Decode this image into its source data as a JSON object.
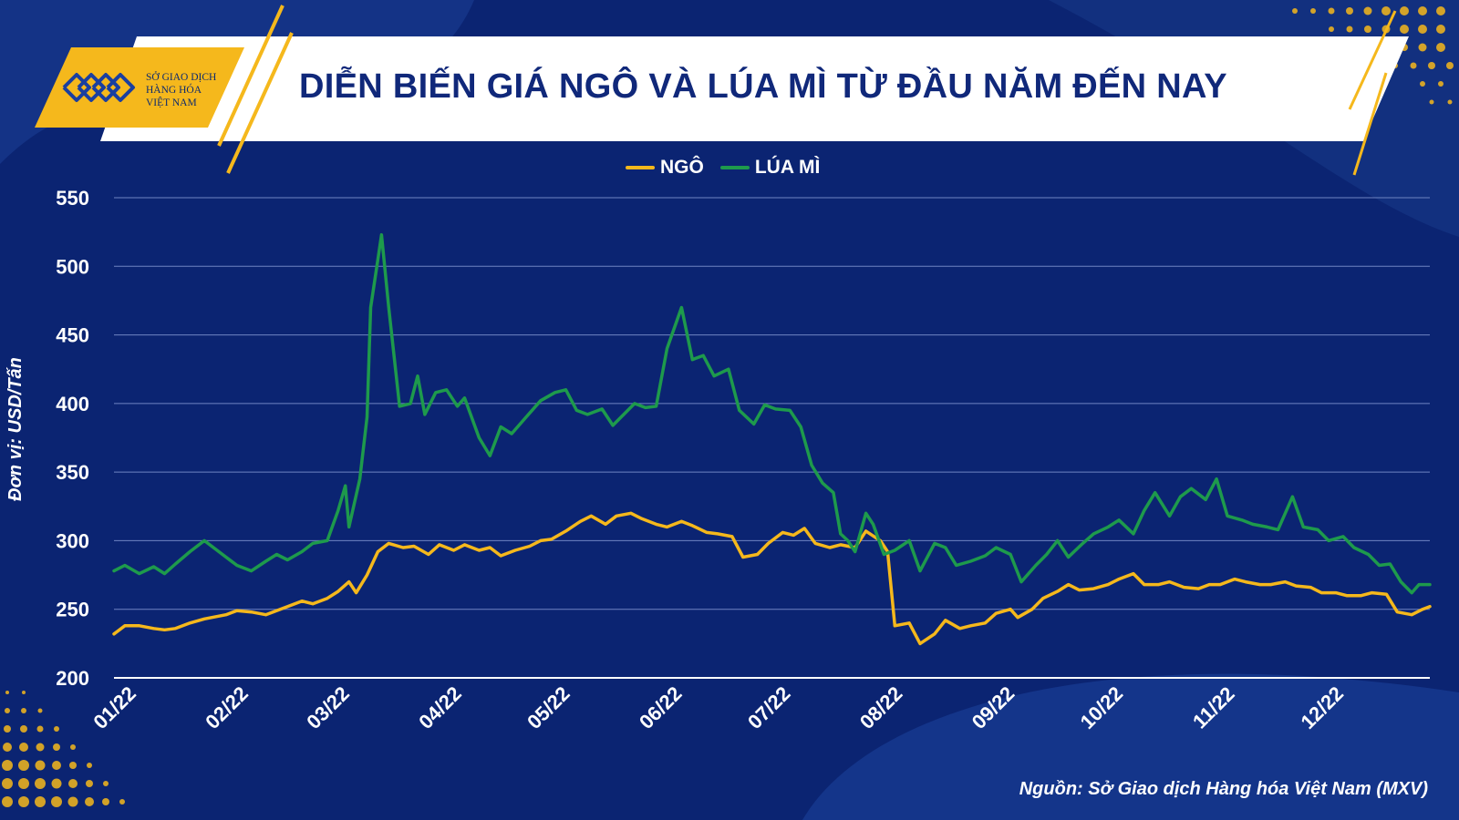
{
  "header": {
    "logo_lines": [
      "SỞ GIAO DỊCH",
      "HÀNG HÓA",
      "VIỆT NAM"
    ],
    "title": "DIỄN BIẾN GIÁ NGÔ VÀ LÚA MÌ TỪ ĐẦU NĂM ĐẾN NAY"
  },
  "footer": {
    "source": "Nguồn: Sở Giao dịch Hàng hóa Việt Nam (MXV)"
  },
  "colors": {
    "background": "#0b2472",
    "corn": "#f5b81c",
    "wheat": "#1e9a4c",
    "accent": "#f5b81c"
  },
  "chart_data": {
    "type": "line",
    "title": "DIỄN BIẾN GIÁ NGÔ VÀ LÚA MÌ TỪ ĐẦU NĂM ĐẾN NAY",
    "ylabel": "Đơn vị: USD/Tấn",
    "xlabel": "",
    "ylim": [
      200,
      550
    ],
    "y_ticks": [
      200,
      250,
      300,
      350,
      400,
      450,
      500,
      550
    ],
    "x_ticks": [
      "01/22",
      "02/22",
      "03/22",
      "04/22",
      "05/22",
      "06/22",
      "07/22",
      "08/22",
      "09/22",
      "10/22",
      "11/22",
      "12/22"
    ],
    "legend_position": "top-center",
    "grid": true,
    "series": [
      {
        "name": "NGÔ",
        "color": "#f5b81c",
        "points": [
          [
            "01/01",
            232
          ],
          [
            "01/04",
            238
          ],
          [
            "01/08",
            238
          ],
          [
            "01/12",
            236
          ],
          [
            "01/15",
            235
          ],
          [
            "01/18",
            236
          ],
          [
            "01/22",
            240
          ],
          [
            "01/26",
            243
          ],
          [
            "02/01",
            246
          ],
          [
            "02/04",
            249
          ],
          [
            "02/08",
            248
          ],
          [
            "02/12",
            246
          ],
          [
            "02/15",
            249
          ],
          [
            "02/18",
            252
          ],
          [
            "02/22",
            256
          ],
          [
            "02/25",
            254
          ],
          [
            "03/01",
            258
          ],
          [
            "03/04",
            263
          ],
          [
            "03/07",
            270
          ],
          [
            "03/09",
            262
          ],
          [
            "03/12",
            275
          ],
          [
            "03/15",
            292
          ],
          [
            "03/18",
            298
          ],
          [
            "03/22",
            295
          ],
          [
            "03/25",
            296
          ],
          [
            "03/29",
            290
          ],
          [
            "04/01",
            297
          ],
          [
            "04/05",
            293
          ],
          [
            "04/08",
            297
          ],
          [
            "04/12",
            293
          ],
          [
            "04/15",
            295
          ],
          [
            "04/18",
            289
          ],
          [
            "04/22",
            293
          ],
          [
            "04/26",
            296
          ],
          [
            "04/29",
            300
          ],
          [
            "05/02",
            301
          ],
          [
            "05/06",
            307
          ],
          [
            "05/10",
            314
          ],
          [
            "05/13",
            318
          ],
          [
            "05/17",
            312
          ],
          [
            "05/20",
            318
          ],
          [
            "05/24",
            320
          ],
          [
            "05/27",
            316
          ],
          [
            "05/31",
            312
          ],
          [
            "06/03",
            310
          ],
          [
            "06/07",
            314
          ],
          [
            "06/10",
            311
          ],
          [
            "06/14",
            306
          ],
          [
            "06/17",
            305
          ],
          [
            "06/21",
            303
          ],
          [
            "06/24",
            288
          ],
          [
            "06/28",
            290
          ],
          [
            "07/01",
            298
          ],
          [
            "07/05",
            306
          ],
          [
            "07/08",
            304
          ],
          [
            "07/11",
            309
          ],
          [
            "07/14",
            298
          ],
          [
            "07/18",
            295
          ],
          [
            "07/21",
            297
          ],
          [
            "07/25",
            295
          ],
          [
            "07/28",
            307
          ],
          [
            "08/01",
            300
          ],
          [
            "08/03",
            292
          ],
          [
            "08/05",
            238
          ],
          [
            "08/09",
            240
          ],
          [
            "08/12",
            225
          ],
          [
            "08/16",
            232
          ],
          [
            "08/19",
            242
          ],
          [
            "08/23",
            236
          ],
          [
            "08/26",
            238
          ],
          [
            "08/30",
            240
          ],
          [
            "09/02",
            247
          ],
          [
            "09/06",
            250
          ],
          [
            "09/08",
            244
          ],
          [
            "09/12",
            250
          ],
          [
            "09/15",
            258
          ],
          [
            "09/19",
            263
          ],
          [
            "09/22",
            268
          ],
          [
            "09/25",
            264
          ],
          [
            "09/29",
            265
          ],
          [
            "10/03",
            268
          ],
          [
            "10/06",
            272
          ],
          [
            "10/10",
            276
          ],
          [
            "10/13",
            268
          ],
          [
            "10/17",
            268
          ],
          [
            "10/20",
            270
          ],
          [
            "10/24",
            266
          ],
          [
            "10/28",
            265
          ],
          [
            "10/31",
            268
          ],
          [
            "11/03",
            268
          ],
          [
            "11/07",
            272
          ],
          [
            "11/10",
            270
          ],
          [
            "11/14",
            268
          ],
          [
            "11/17",
            268
          ],
          [
            "11/21",
            270
          ],
          [
            "11/24",
            267
          ],
          [
            "11/28",
            266
          ],
          [
            "12/01",
            262
          ],
          [
            "12/05",
            262
          ],
          [
            "12/08",
            260
          ],
          [
            "12/12",
            260
          ],
          [
            "12/15",
            262
          ],
          [
            "12/19",
            261
          ],
          [
            "12/22",
            248
          ],
          [
            "12/26",
            246
          ],
          [
            "12/29",
            250
          ],
          [
            "12/31",
            252
          ]
        ]
      },
      {
        "name": "LÚA MÌ",
        "color": "#1e9a4c",
        "points": [
          [
            "01/01",
            278
          ],
          [
            "01/04",
            282
          ],
          [
            "01/08",
            276
          ],
          [
            "01/12",
            281
          ],
          [
            "01/15",
            276
          ],
          [
            "01/18",
            283
          ],
          [
            "01/22",
            292
          ],
          [
            "01/26",
            300
          ],
          [
            "02/01",
            288
          ],
          [
            "02/04",
            282
          ],
          [
            "02/08",
            278
          ],
          [
            "02/12",
            285
          ],
          [
            "02/15",
            290
          ],
          [
            "02/18",
            286
          ],
          [
            "02/22",
            292
          ],
          [
            "02/25",
            298
          ],
          [
            "03/01",
            300
          ],
          [
            "03/04",
            322
          ],
          [
            "03/06",
            340
          ],
          [
            "03/07",
            310
          ],
          [
            "03/10",
            345
          ],
          [
            "03/12",
            390
          ],
          [
            "03/13",
            470
          ],
          [
            "03/15",
            505
          ],
          [
            "03/16",
            523
          ],
          [
            "03/18",
            470
          ],
          [
            "03/21",
            398
          ],
          [
            "03/24",
            400
          ],
          [
            "03/26",
            420
          ],
          [
            "03/28",
            392
          ],
          [
            "03/31",
            408
          ],
          [
            "04/03",
            410
          ],
          [
            "04/06",
            398
          ],
          [
            "04/08",
            404
          ],
          [
            "04/12",
            375
          ],
          [
            "04/15",
            362
          ],
          [
            "04/18",
            383
          ],
          [
            "04/21",
            378
          ],
          [
            "04/25",
            390
          ],
          [
            "04/29",
            402
          ],
          [
            "05/03",
            408
          ],
          [
            "05/06",
            410
          ],
          [
            "05/09",
            395
          ],
          [
            "05/12",
            392
          ],
          [
            "05/16",
            396
          ],
          [
            "05/19",
            384
          ],
          [
            "05/22",
            392
          ],
          [
            "05/25",
            400
          ],
          [
            "05/28",
            397
          ],
          [
            "05/31",
            398
          ],
          [
            "06/03",
            440
          ],
          [
            "06/07",
            470
          ],
          [
            "06/10",
            432
          ],
          [
            "06/13",
            435
          ],
          [
            "06/16",
            420
          ],
          [
            "06/20",
            425
          ],
          [
            "06/23",
            395
          ],
          [
            "06/27",
            385
          ],
          [
            "06/30",
            399
          ],
          [
            "07/03",
            396
          ],
          [
            "07/07",
            395
          ],
          [
            "07/10",
            383
          ],
          [
            "07/13",
            355
          ],
          [
            "07/16",
            342
          ],
          [
            "07/19",
            335
          ],
          [
            "07/21",
            305
          ],
          [
            "07/23",
            300
          ],
          [
            "07/25",
            292
          ],
          [
            "07/28",
            320
          ],
          [
            "07/30",
            312
          ],
          [
            "08/02",
            290
          ],
          [
            "08/05",
            293
          ],
          [
            "08/09",
            300
          ],
          [
            "08/12",
            278
          ],
          [
            "08/16",
            298
          ],
          [
            "08/19",
            295
          ],
          [
            "08/22",
            282
          ],
          [
            "08/26",
            285
          ],
          [
            "08/30",
            289
          ],
          [
            "09/02",
            295
          ],
          [
            "09/06",
            290
          ],
          [
            "09/09",
            270
          ],
          [
            "09/13",
            282
          ],
          [
            "09/16",
            290
          ],
          [
            "09/19",
            300
          ],
          [
            "09/22",
            288
          ],
          [
            "09/26",
            298
          ],
          [
            "09/29",
            305
          ],
          [
            "10/03",
            310
          ],
          [
            "10/06",
            315
          ],
          [
            "10/10",
            305
          ],
          [
            "10/13",
            322
          ],
          [
            "10/16",
            335
          ],
          [
            "10/20",
            318
          ],
          [
            "10/23",
            332
          ],
          [
            "10/26",
            338
          ],
          [
            "10/30",
            330
          ],
          [
            "11/02",
            345
          ],
          [
            "11/05",
            318
          ],
          [
            "11/09",
            315
          ],
          [
            "11/12",
            312
          ],
          [
            "11/16",
            310
          ],
          [
            "11/19",
            308
          ],
          [
            "11/23",
            332
          ],
          [
            "11/26",
            310
          ],
          [
            "11/30",
            308
          ],
          [
            "12/03",
            300
          ],
          [
            "12/07",
            303
          ],
          [
            "12/10",
            295
          ],
          [
            "12/14",
            290
          ],
          [
            "12/17",
            282
          ],
          [
            "12/20",
            283
          ],
          [
            "12/23",
            270
          ],
          [
            "12/26",
            262
          ],
          [
            "12/28",
            268
          ],
          [
            "12/31",
            268
          ]
        ]
      }
    ]
  }
}
